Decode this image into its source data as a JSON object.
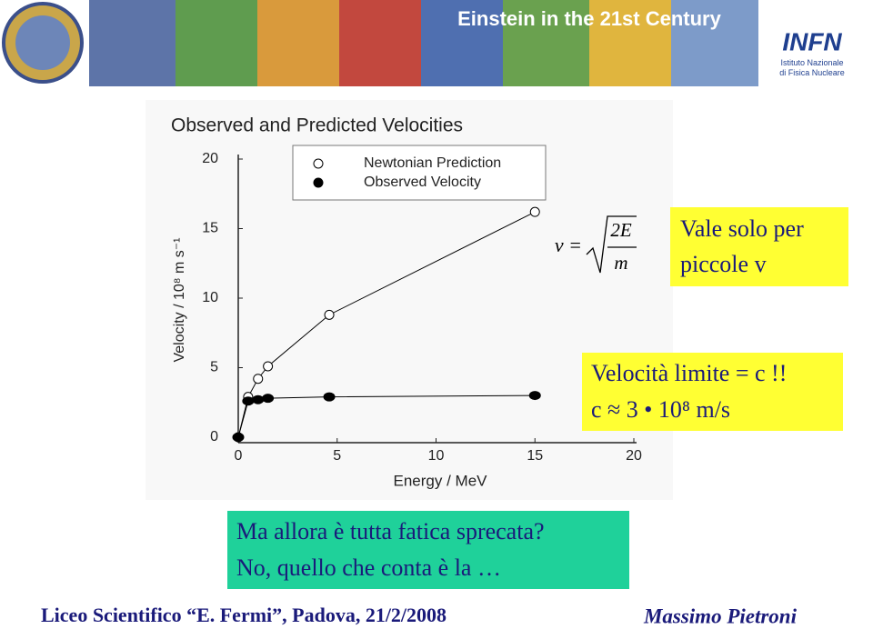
{
  "header": {
    "title": "Einstein in the 21st Century",
    "logo_text": "INFN",
    "logo_subtext_1": "Istituto Nazionale",
    "logo_subtext_2": "di Fisica Nucleare"
  },
  "chart_data": {
    "type": "line",
    "title": "Observed and Predicted Velocities",
    "x_label": "Energy / MeV",
    "y_label": "Velocity / 10⁸ m s⁻¹",
    "xlim": [
      0,
      20
    ],
    "ylim": [
      0,
      20
    ],
    "xticks": [
      0,
      5,
      10,
      15,
      20
    ],
    "yticks": [
      0,
      5,
      10,
      15,
      20
    ],
    "x": [
      0,
      0.5,
      1.0,
      1.5,
      4.6,
      15
    ],
    "series": [
      {
        "name": "Newtonian Prediction",
        "color": "#000000",
        "marker": "open",
        "values": [
          0,
          2.9,
          4.2,
          5.1,
          8.8,
          16.2
        ]
      },
      {
        "name": "Observed Velocity",
        "color": "#000000",
        "marker": "filled",
        "values": [
          0,
          2.6,
          2.7,
          2.8,
          2.9,
          3.0
        ]
      }
    ],
    "legend": "upper-center"
  },
  "formula": {
    "lhs": "v =",
    "numerator": "2E",
    "denominator": "m"
  },
  "note_1": {
    "lines": [
      "Vale solo per",
      "piccole v"
    ]
  },
  "note_2": {
    "lines": [
      "Velocità limite = c !!",
      "c ≈ 3 • 10⁸ m/s"
    ]
  },
  "note_3": {
    "lines": [
      "Ma allora è tutta fatica sprecata?",
      "No, quello che conta è la …"
    ]
  },
  "footer": {
    "left": "Liceo Scientifico “E. Fermi”, Padova, 21/2/2008",
    "right": "Massimo Pietroni"
  }
}
